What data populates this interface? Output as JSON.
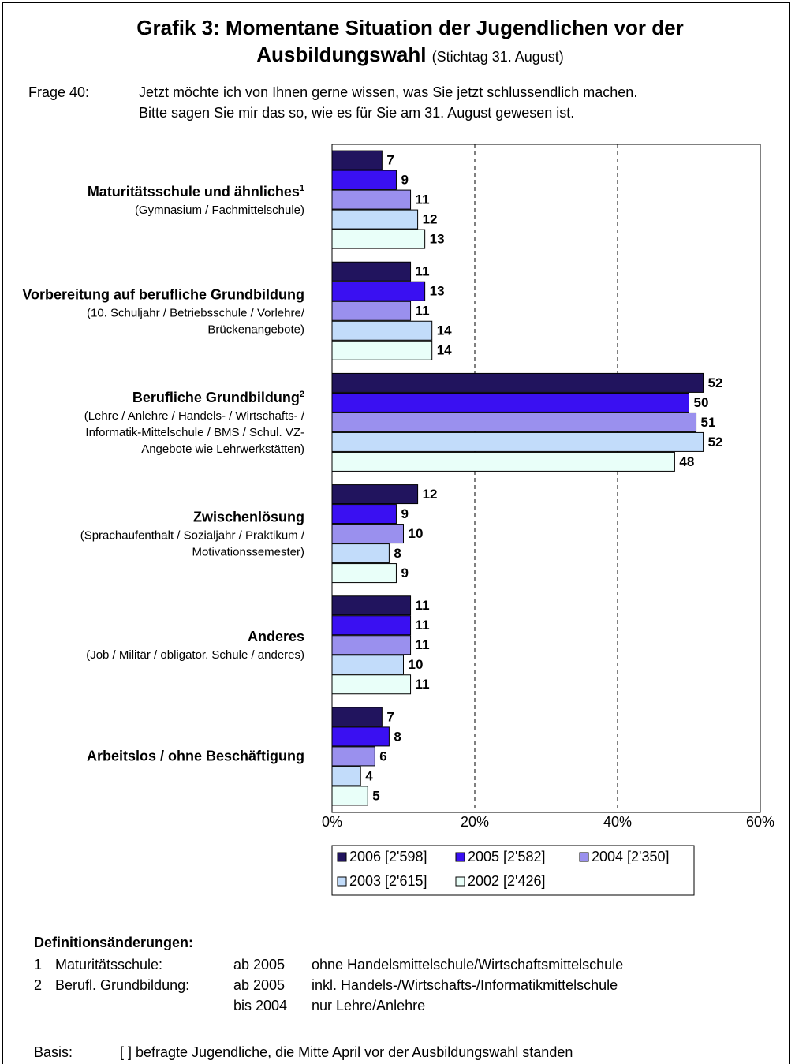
{
  "chart_data": {
    "type": "bar",
    "orientation": "horizontal",
    "title": "Grafik 3: Momentane Situation der Jugendlichen vor der Ausbildungswahl",
    "subtitle": "(Stichtag 31. August)",
    "question": {
      "label": "Frage 40:",
      "lines": [
        "Jetzt möchte ich von Ihnen gerne wissen, was Sie jetzt schlussendlich machen.",
        "Bitte sagen Sie mir das so, wie es für Sie am 31. August gewesen ist."
      ]
    },
    "categories": [
      "Maturitätsschule und ähnliches",
      "Vorbereitung auf berufliche Grundbildung",
      "Berufliche Grundbildung",
      "Zwischenlösung",
      "Anderes",
      "Arbeitslos / ohne Beschäftigung"
    ],
    "category_footnotes": {
      "0": "1",
      "2": "2"
    },
    "category_details": [
      [
        "(Gymnasium / Fachmittelschule)"
      ],
      [
        "(10. Schuljahr / Betriebsschule / Vorlehre/",
        "Brückenangebote)"
      ],
      [
        "(Lehre / Anlehre / Handels- / Wirtschafts- /",
        "Informatik-Mittelschule / BMS / Schul. VZ-",
        "Angebote wie Lehrwerkstätten)"
      ],
      [
        "(Sprachaufenthalt / Sozialjahr / Praktikum /",
        "Motivationssemester)"
      ],
      [
        "(Job / Militär / obligator. Schule / anderes)"
      ],
      []
    ],
    "series": [
      {
        "name": "2006 [2'598]",
        "color": "#21145e",
        "values": [
          7,
          11,
          52,
          12,
          11,
          7
        ]
      },
      {
        "name": "2005 [2'582]",
        "color": "#3a10f2",
        "values": [
          9,
          13,
          50,
          9,
          11,
          8
        ]
      },
      {
        "name": "2004 [2'350]",
        "color": "#9a90ee",
        "values": [
          11,
          11,
          51,
          10,
          11,
          6
        ]
      },
      {
        "name": "2003 [2'615]",
        "color": "#c2dcfa",
        "values": [
          12,
          14,
          52,
          8,
          10,
          4
        ]
      },
      {
        "name": "2002 [2'426]",
        "color": "#e9fff9",
        "values": [
          13,
          14,
          48,
          9,
          11,
          5
        ]
      }
    ],
    "xlim": [
      0,
      60
    ],
    "xticks": [
      {
        "value": 0,
        "label": "0%"
      },
      {
        "value": 20,
        "label": "20%"
      },
      {
        "value": 40,
        "label": "40%"
      },
      {
        "value": 60,
        "label": "60%"
      }
    ],
    "grid": true,
    "legend": "bottom",
    "definitions": {
      "title": "Definitionsänderungen:",
      "rows": [
        {
          "number": "1",
          "label": "Maturitätsschule:",
          "period": "ab 2005",
          "text": "ohne Handelsmittelschule/Wirtschaftsmittelschule"
        },
        {
          "number": "2",
          "label": "Berufl. Grundbildung:",
          "period": "ab 2005",
          "text": "inkl. Handels-/Wirtschafts-/Informatikmittelschule"
        },
        {
          "period": "bis 2004",
          "text": "nur Lehre/Anlehre"
        }
      ]
    },
    "basis": {
      "label": "Basis:",
      "text": "[ ] befragte Jugendliche, die Mitte April vor der Ausbildungswahl standen"
    }
  }
}
